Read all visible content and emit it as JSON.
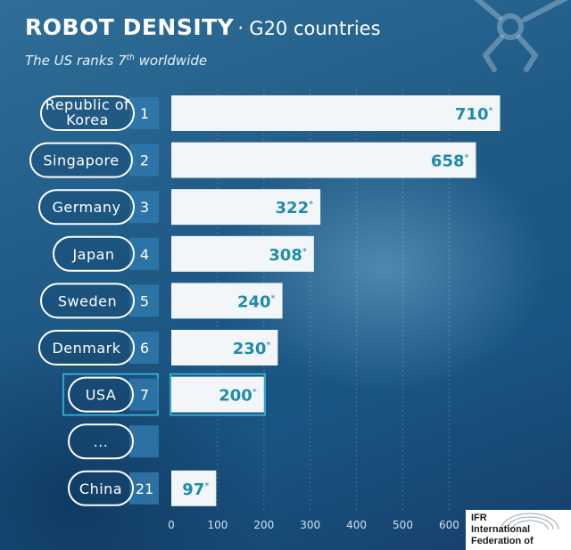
{
  "header": {
    "title_main": "ROBOT DENSITY",
    "title_sep": "·",
    "title_sub": "G20 countries",
    "subtitle_pre": "The US ranks 7",
    "subtitle_sup": "th",
    "subtitle_post": " worldwide"
  },
  "chart_data": {
    "type": "bar",
    "orientation": "horizontal",
    "rows": [
      {
        "country_lines": [
          "Republic of",
          "Korea"
        ],
        "rank": "1",
        "value": 710,
        "label": "710*"
      },
      {
        "country_lines": [
          "Singapore"
        ],
        "rank": "2",
        "value": 658,
        "label": "658*"
      },
      {
        "country_lines": [
          "Germany"
        ],
        "rank": "3",
        "value": 322,
        "label": "322*"
      },
      {
        "country_lines": [
          "Japan"
        ],
        "rank": "4",
        "value": 308,
        "label": "308*"
      },
      {
        "country_lines": [
          "Sweden"
        ],
        "rank": "5",
        "value": 240,
        "label": "240*"
      },
      {
        "country_lines": [
          "Denmark"
        ],
        "rank": "6",
        "value": 230,
        "label": "230*"
      },
      {
        "country_lines": [
          "USA"
        ],
        "rank": "7",
        "value": 200,
        "label": "200*",
        "highlight": true
      },
      {
        "country_lines": [
          "..."
        ],
        "rank": "",
        "value": null,
        "label": "",
        "gap": true
      },
      {
        "country_lines": [
          "China"
        ],
        "rank": "21",
        "value": 97,
        "label": "97*"
      }
    ],
    "xticks": [
      0,
      100,
      200,
      300,
      400,
      500,
      600
    ],
    "xlim": [
      0,
      710
    ],
    "grid": true,
    "legend": "none"
  },
  "logo": {
    "lines": [
      "IFR",
      "International",
      "Federation of"
    ]
  },
  "colors": {
    "bar": "#f2f6f9",
    "value_text": "#1f8ca8",
    "highlight_box": "#38c2e6",
    "rank_box": "#2f79ab",
    "background": "#1f5b86"
  }
}
